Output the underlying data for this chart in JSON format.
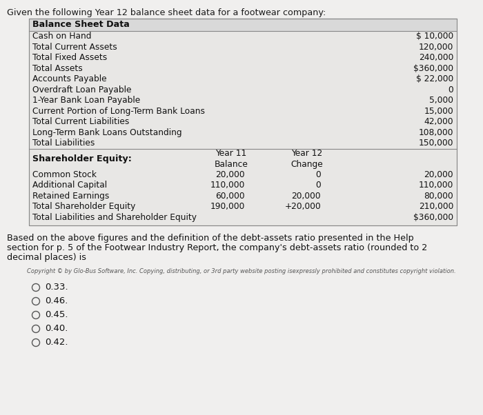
{
  "title_text": "Given the following Year 12 balance sheet data for a footwear company:",
  "table_header": "Balance Sheet Data",
  "header_bg": "#d9d9d9",
  "table_bg": "#e8e8e8",
  "balance_sheet_rows": [
    [
      "Cash on Hand",
      "$ 10,000"
    ],
    [
      "Total Current Assets",
      "120,000"
    ],
    [
      "Total Fixed Assets",
      "240,000"
    ],
    [
      "Total Assets",
      "$360,000"
    ],
    [
      "Accounts Payable",
      "$ 22,000"
    ],
    [
      "Overdraft Loan Payable",
      "0"
    ],
    [
      "1-Year Bank Loan Payable",
      "5,000"
    ],
    [
      "Current Portion of Long-Term Bank Loans",
      "15,000"
    ],
    [
      "Total Current Liabilities",
      "42,000"
    ],
    [
      "Long-Term Bank Loans Outstanding",
      "108,000"
    ],
    [
      "Total Liabilities",
      "150,000"
    ]
  ],
  "equity_rows": [
    [
      "Common Stock",
      "20,000",
      "0",
      "20,000"
    ],
    [
      "Additional Capital",
      "110,000",
      "0",
      "110,000"
    ],
    [
      "Retained Earnings",
      "60,000",
      "20,000",
      "80,000"
    ],
    [
      "Total Shareholder Equity",
      "190,000",
      "+20,000",
      "210,000"
    ],
    [
      "Total Liabilities and Shareholder Equity",
      "",
      "",
      "$360,000"
    ]
  ],
  "para_line1": "Based on the above figures and the definition of the debt-assets ratio presented in the Help",
  "para_line2": "section for p. 5 of the Footwear Industry Report, the company's debt-assets ratio (rounded to 2",
  "para_line3": "decimal places) is",
  "copyright": "Copyright © by Glo-Bus Software, Inc. Copying, distributing, or 3rd party website posting isexpressly prohibited and constitutes copyright violation.",
  "options": [
    "0.33.",
    "0.46.",
    "0.45.",
    "0.40.",
    "0.42."
  ],
  "fig_bg": "#f0efee",
  "inner_bg": "#e8e7e5"
}
